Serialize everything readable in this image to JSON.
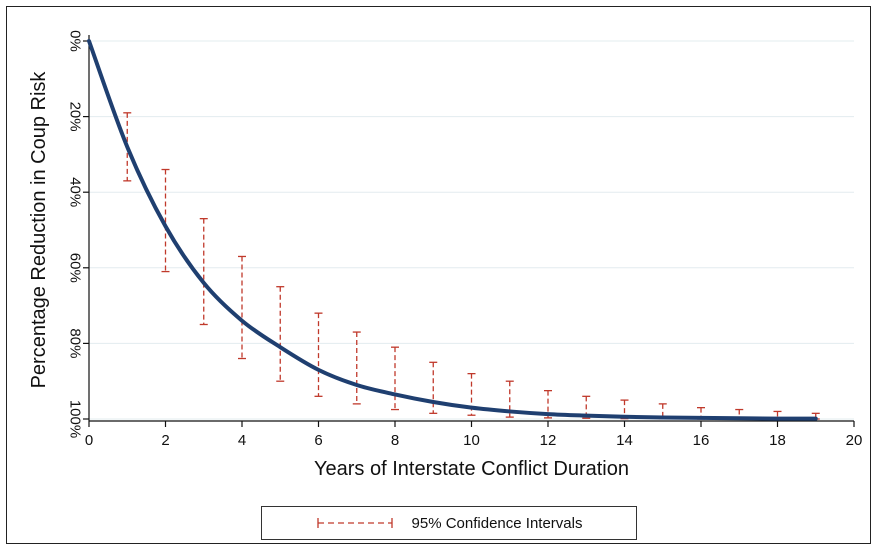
{
  "chart_data": {
    "type": "line",
    "title": "",
    "xlabel": "Years of Interstate Conflict Duration",
    "ylabel": "Percentage Reduction in Coup Risk",
    "xlim": [
      0,
      20
    ],
    "ylim": [
      0,
      100
    ],
    "y_inverted": true,
    "x_ticks": [
      0,
      2,
      4,
      6,
      8,
      10,
      12,
      14,
      16,
      18,
      20
    ],
    "y_ticks": [
      0,
      20,
      40,
      60,
      80,
      100
    ],
    "y_tick_labels": [
      "0%",
      "20%",
      "40%",
      "60%",
      "80%",
      "100%"
    ],
    "grid": true,
    "legend_position": "bottom",
    "series": [
      {
        "x": [
          0,
          1,
          2,
          3,
          4,
          5,
          6,
          7,
          8,
          9,
          10,
          11,
          12,
          13,
          14,
          15,
          16,
          17,
          18,
          19
        ],
        "values": [
          0,
          28,
          49,
          64,
          74,
          81,
          87,
          91,
          93.5,
          95.5,
          97,
          98,
          98.7,
          99.1,
          99.4,
          99.6,
          99.7,
          99.8,
          99.9,
          99.9
        ]
      }
    ],
    "confidence_intervals": {
      "name": "95% Confidence Intervals",
      "x": [
        1,
        2,
        3,
        4,
        5,
        6,
        7,
        8,
        9,
        10,
        11,
        12,
        13,
        14,
        15,
        16,
        17,
        18,
        19
      ],
      "lower": [
        19,
        34,
        47,
        57,
        65,
        72,
        77,
        81,
        85,
        88,
        90,
        92.5,
        94,
        95,
        96,
        97,
        97.5,
        98,
        98.5
      ],
      "upper": [
        37,
        61,
        75,
        84,
        90,
        94,
        96,
        97.5,
        98.5,
        99,
        99.5,
        99.7,
        99.8,
        99.9,
        99.9,
        100,
        100,
        100,
        100
      ]
    },
    "colors": {
      "line": "#1f3f70",
      "ci": "#c0392b",
      "grid": "#e3ecef",
      "axis": "#111111"
    }
  }
}
